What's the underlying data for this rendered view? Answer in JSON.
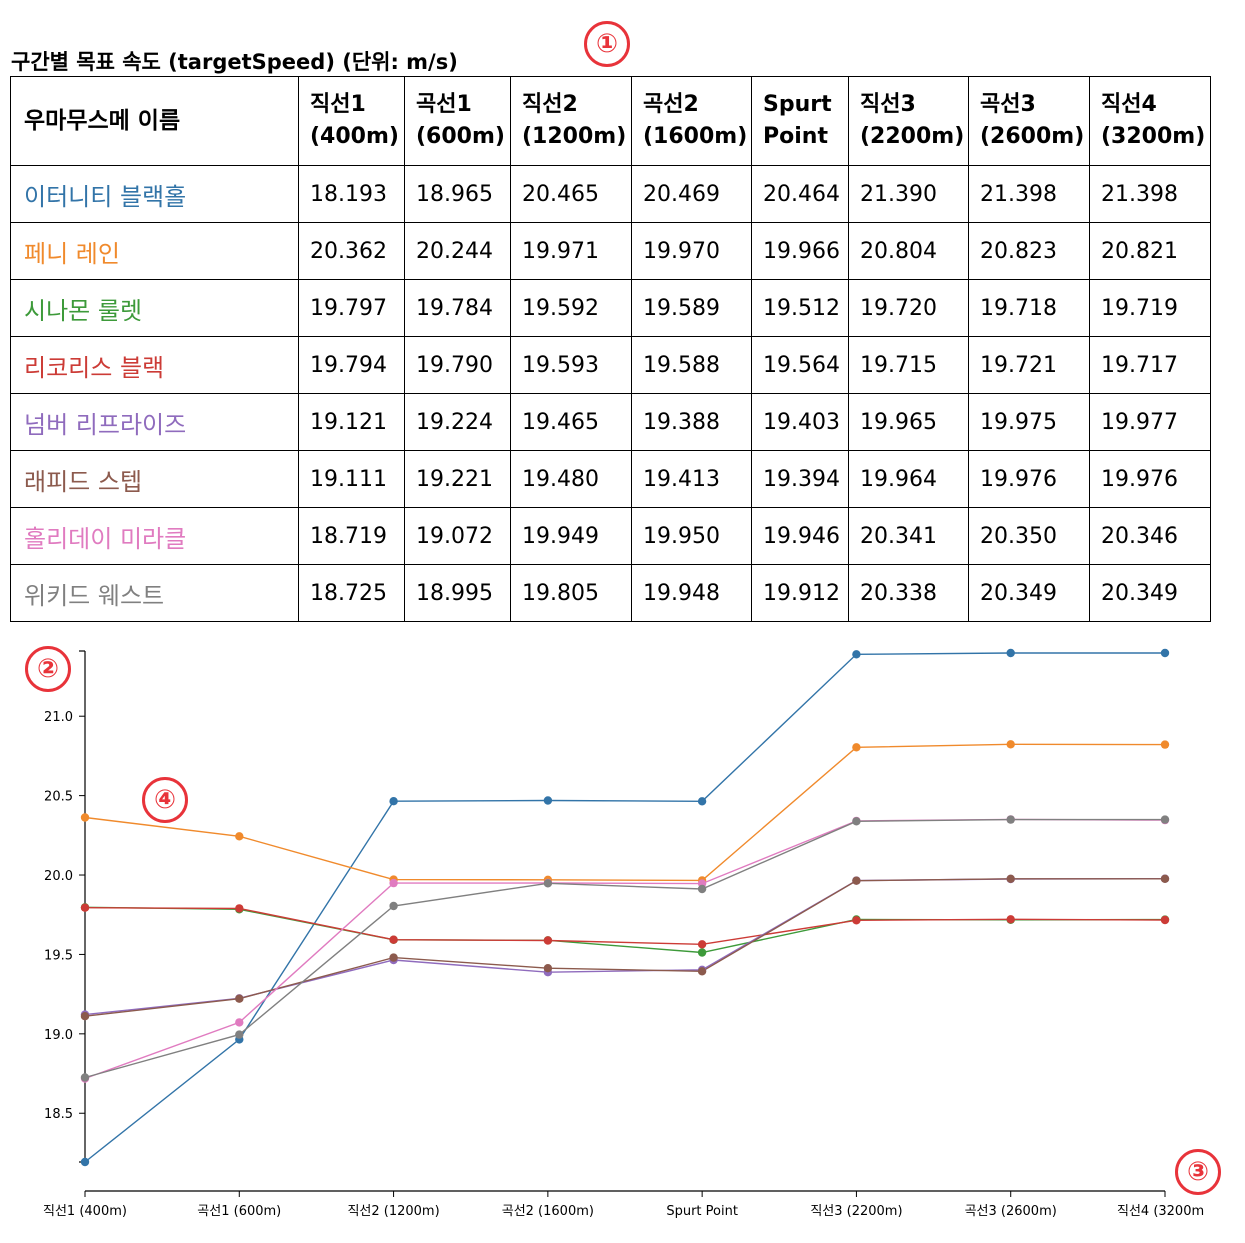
{
  "title": "구간별 목표 속도 (targetSpeed) (단위: m/s)",
  "markers": [
    "①",
    "②",
    "③",
    "④"
  ],
  "table": {
    "name_header": "우마무스메 이름",
    "column_headers": [
      [
        "직선1",
        "(400m)"
      ],
      [
        "곡선1",
        "(600m)"
      ],
      [
        "직선2",
        "(1200m)"
      ],
      [
        "곡선2",
        "(1600m)"
      ],
      [
        "Spurt",
        "Point"
      ],
      [
        "직선3",
        "(2200m)"
      ],
      [
        "곡선3",
        "(2600m)"
      ],
      [
        "직선4",
        "(3200m)"
      ]
    ],
    "rows": [
      {
        "name": "이터니티 블랙홀",
        "color": "#3274a8",
        "values": [
          "18.193",
          "18.965",
          "20.465",
          "20.469",
          "20.464",
          "21.390",
          "21.398",
          "21.398"
        ]
      },
      {
        "name": "페니 레인",
        "color": "#f08a2c",
        "values": [
          "20.362",
          "20.244",
          "19.971",
          "19.970",
          "19.966",
          "20.804",
          "20.823",
          "20.821"
        ]
      },
      {
        "name": "시나몬 룰렛",
        "color": "#3d9a3a",
        "values": [
          "19.797",
          "19.784",
          "19.592",
          "19.589",
          "19.512",
          "19.720",
          "19.718",
          "19.719"
        ]
      },
      {
        "name": "리코리스 블랙",
        "color": "#cc3b36",
        "values": [
          "19.794",
          "19.790",
          "19.593",
          "19.588",
          "19.564",
          "19.715",
          "19.721",
          "19.717"
        ]
      },
      {
        "name": "넘버 리프라이즈",
        "color": "#8f6bbd",
        "values": [
          "19.121",
          "19.224",
          "19.465",
          "19.388",
          "19.403",
          "19.965",
          "19.975",
          "19.977"
        ]
      },
      {
        "name": "래피드 스텝",
        "color": "#8c5a4d",
        "values": [
          "19.111",
          "19.221",
          "19.480",
          "19.413",
          "19.394",
          "19.964",
          "19.976",
          "19.976"
        ]
      },
      {
        "name": "홀리데이 미라클",
        "color": "#e07bc0",
        "values": [
          "18.719",
          "19.072",
          "19.949",
          "19.950",
          "19.946",
          "20.341",
          "20.350",
          "20.346"
        ]
      },
      {
        "name": "위키드 웨스트",
        "color": "#808080",
        "values": [
          "18.725",
          "18.995",
          "19.805",
          "19.948",
          "19.912",
          "20.338",
          "20.349",
          "20.349"
        ]
      }
    ]
  },
  "chart_data": {
    "type": "line",
    "x": [
      "직선1 (400m)",
      "곡선1 (600m)",
      "직선2 (1200m)",
      "곡선2 (1600m)",
      "Spurt Point",
      "직선3 (2200m)",
      "곡선3 (2600m)",
      "직선4 (3200m"
    ],
    "yticks": [
      "18.5",
      "19.0",
      "19.5",
      "20.0",
      "20.5",
      "21.0"
    ],
    "ylim": [
      18.193,
      21.398
    ],
    "grid": false,
    "series": [
      {
        "color": "#3274a8",
        "values": [
          18.193,
          18.965,
          20.465,
          20.469,
          20.464,
          21.39,
          21.398,
          21.398
        ]
      },
      {
        "color": "#f08a2c",
        "values": [
          20.362,
          20.244,
          19.971,
          19.97,
          19.966,
          20.804,
          20.823,
          20.821
        ]
      },
      {
        "color": "#3d9a3a",
        "values": [
          19.797,
          19.784,
          19.592,
          19.589,
          19.512,
          19.72,
          19.718,
          19.719
        ]
      },
      {
        "color": "#cc3b36",
        "values": [
          19.794,
          19.79,
          19.593,
          19.588,
          19.564,
          19.715,
          19.721,
          19.717
        ]
      },
      {
        "color": "#8f6bbd",
        "values": [
          19.121,
          19.224,
          19.465,
          19.388,
          19.403,
          19.965,
          19.975,
          19.977
        ]
      },
      {
        "color": "#8c5a4d",
        "values": [
          19.111,
          19.221,
          19.48,
          19.413,
          19.394,
          19.964,
          19.976,
          19.976
        ]
      },
      {
        "color": "#e07bc0",
        "values": [
          18.719,
          19.072,
          19.949,
          19.95,
          19.946,
          20.341,
          20.35,
          20.346
        ]
      },
      {
        "color": "#808080",
        "values": [
          18.725,
          18.995,
          19.805,
          19.948,
          19.912,
          20.338,
          20.349,
          20.349
        ]
      }
    ]
  }
}
